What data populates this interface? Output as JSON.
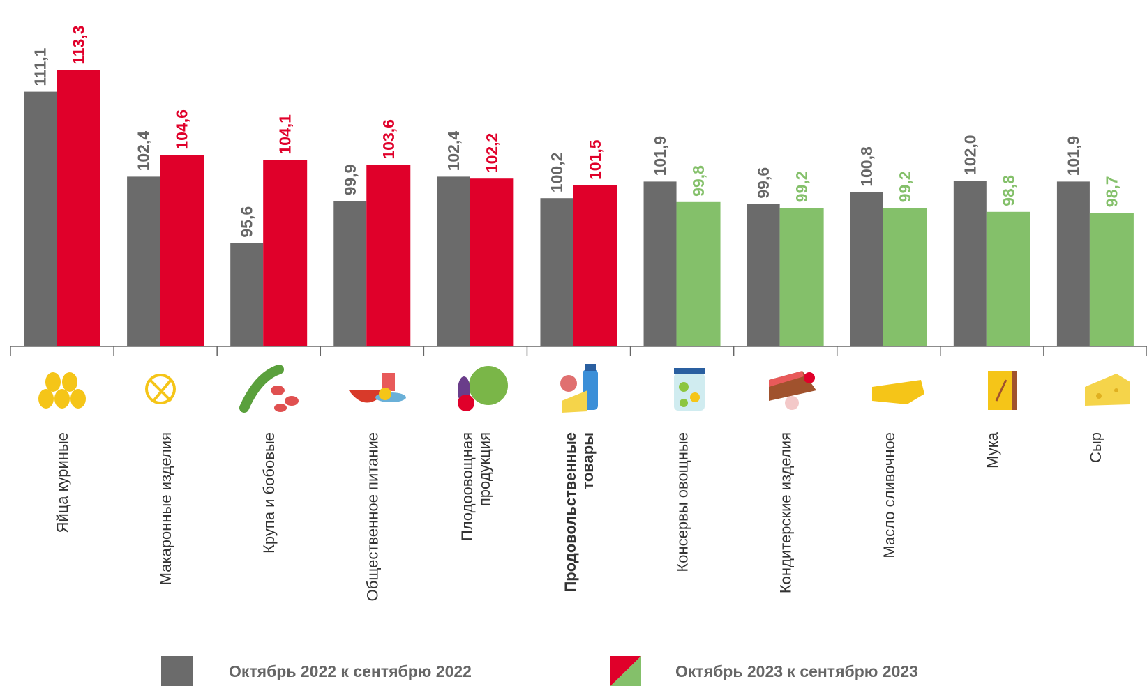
{
  "chart_data": {
    "type": "bar",
    "categories": [
      "Яйца куриные",
      "Макаронные изделия",
      "Крупа и бобовые",
      "Общественное питание",
      "Плодоовощная\nпродукция",
      "Продовольственные\nтовары",
      "Консервы овощные",
      "Кондитерские изделия",
      "Масло сливочное",
      "Мука",
      "Сыр"
    ],
    "highlight_index": 5,
    "series": [
      {
        "name": "Октябрь 2022 к сентябрю 2022",
        "color": "#6b6b6b",
        "values": [
          111.1,
          102.4,
          95.6,
          99.9,
          102.4,
          100.2,
          101.9,
          99.6,
          100.8,
          102.0,
          101.9
        ],
        "value_labels": [
          "111,1",
          "102,4",
          "95,6",
          "99,9",
          "102,4",
          "100,2",
          "101,9",
          "99,6",
          "100,8",
          "102,0",
          "101,9"
        ]
      },
      {
        "name": "Октябрь 2023 к сентябрю 2023",
        "color": "#e0002a",
        "colors": [
          "#e0002a",
          "#e0002a",
          "#e0002a",
          "#e0002a",
          "#e0002a",
          "#e0002a",
          "#84c06a",
          "#84c06a",
          "#84c06a",
          "#84c06a",
          "#84c06a"
        ],
        "values": [
          113.3,
          104.6,
          104.1,
          103.6,
          102.2,
          101.5,
          99.8,
          99.2,
          99.2,
          98.8,
          98.7
        ],
        "value_labels": [
          "113,3",
          "104,6",
          "104,1",
          "103,6",
          "102,2",
          "101,5",
          "99,8",
          "99,2",
          "99,2",
          "98,8",
          "98,7"
        ]
      }
    ],
    "ylim": [
      85,
      120.5
    ]
  }
}
